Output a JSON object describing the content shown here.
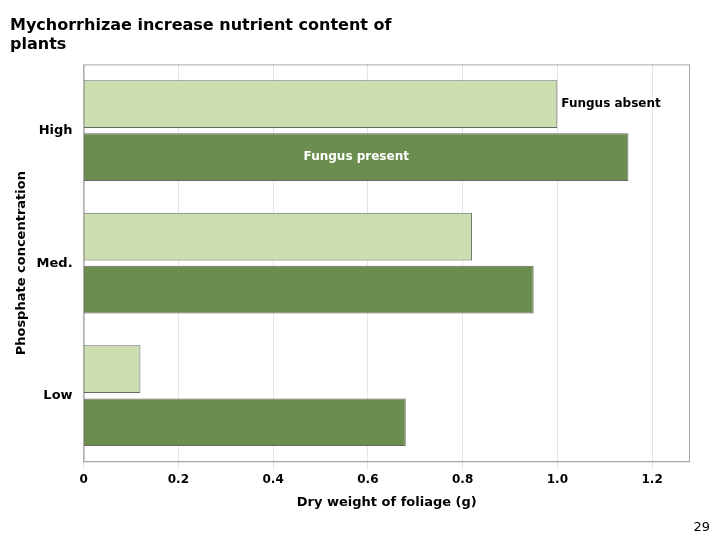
{
  "chart_data": {
    "type": "bar",
    "orientation": "horizontal",
    "title": [
      "Mychorrhizae increase nutrient content of",
      "plants"
    ],
    "categories": [
      "Low",
      "Med.",
      "High"
    ],
    "series": [
      {
        "name": "Fungus absent",
        "color": "#ccddb0",
        "values": [
          0.12,
          0.82,
          1.0
        ]
      },
      {
        "name": "Fungus present",
        "color": "#6b8e4e",
        "values": [
          0.68,
          0.95,
          1.15
        ]
      }
    ],
    "xlabel": "Dry weight of foliage (g)",
    "ylabel": "Phosphate concentration",
    "xlim": [
      0,
      1.28
    ],
    "xticks": [
      0,
      0.2,
      0.4,
      0.6,
      0.8,
      {
        "value": 1.0,
        "label": "1.0"
      },
      1.2
    ],
    "grid": true,
    "annotations": [
      "29"
    ]
  }
}
